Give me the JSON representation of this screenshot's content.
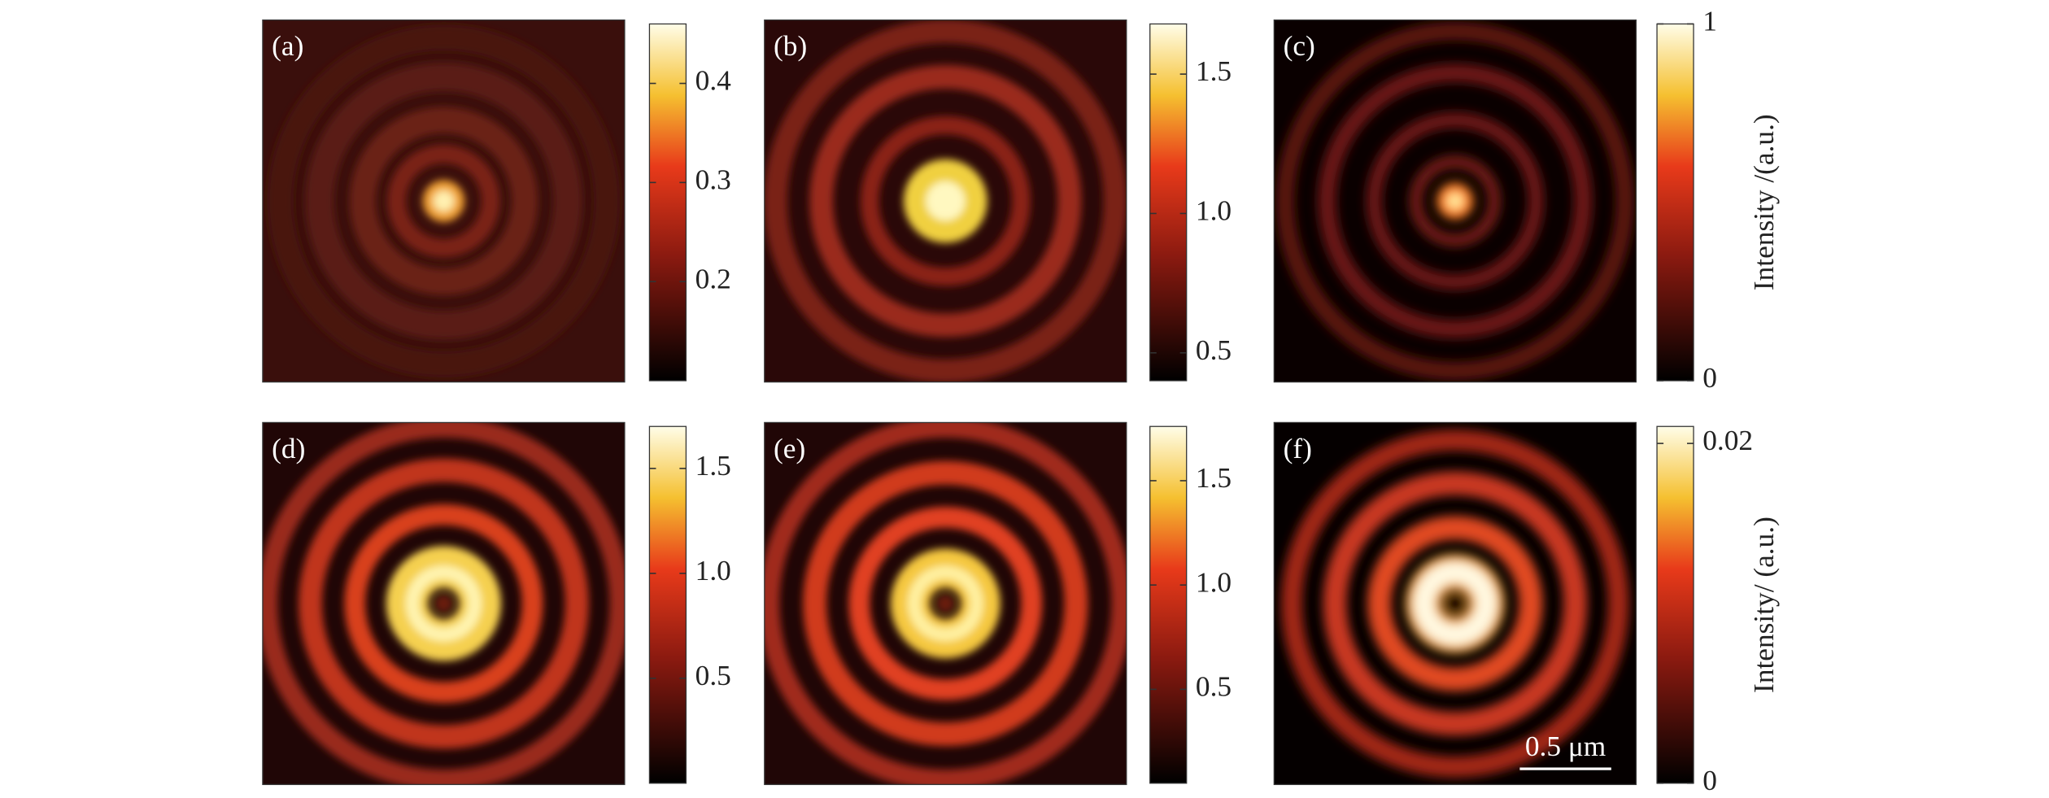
{
  "chart_data": [
    {
      "type": "heatmap",
      "panel_label": "(a)",
      "clim": [
        0.1,
        0.46
      ],
      "cticks": [
        0.2,
        0.3,
        0.4
      ]
    },
    {
      "type": "heatmap",
      "panel_label": "(b)",
      "clim": [
        0.4,
        1.68
      ],
      "cticks": [
        0.5,
        {
          "value": 1,
          "label": "1.0"
        },
        1.5
      ]
    },
    {
      "type": "heatmap",
      "panel_label": "(c)",
      "clim": [
        0,
        1
      ],
      "cticks": [
        0,
        1
      ],
      "colorbar_label": "Intensity /(a.u.)"
    },
    {
      "type": "heatmap",
      "panel_label": "(d)",
      "clim": [
        0,
        1.7
      ],
      "cticks": [
        0.5,
        {
          "value": 1,
          "label": "1.0"
        },
        1.5
      ]
    },
    {
      "type": "heatmap",
      "panel_label": "(e)",
      "clim": [
        0.05,
        1.76
      ],
      "cticks": [
        0.5,
        {
          "value": 1,
          "label": "1.0"
        },
        1.5
      ]
    },
    {
      "type": "heatmap",
      "panel_label": "(f)",
      "clim": [
        0,
        0.021
      ],
      "cticks": [
        0,
        0.02
      ],
      "colorbar_label": "Intensity/ (a.u.)",
      "scale_bar": "0.5 μm"
    }
  ]
}
